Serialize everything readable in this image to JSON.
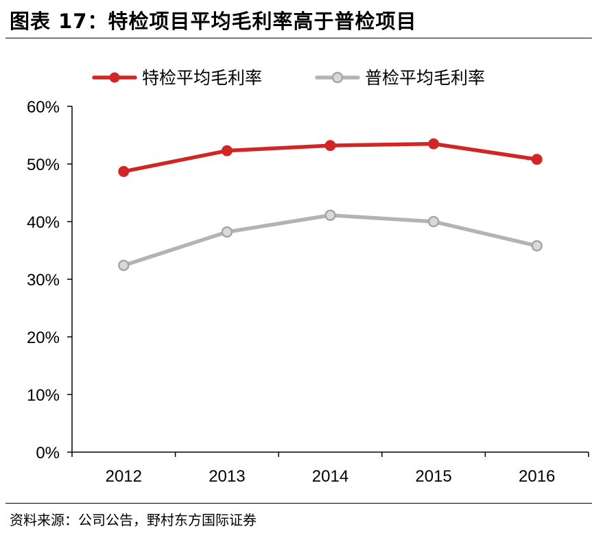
{
  "figure": {
    "title": "图表 17：特检项目平均毛利率高于普检项目",
    "source": "资料来源：公司公告，野村东方国际证券"
  },
  "chart_data": {
    "type": "line",
    "title": "",
    "xlabel": "",
    "ylabel": "",
    "categories": [
      "2012",
      "2013",
      "2014",
      "2015",
      "2016"
    ],
    "y_tick_labels": [
      "0%",
      "10%",
      "20%",
      "30%",
      "40%",
      "50%",
      "60%"
    ],
    "ylim": [
      0,
      60
    ],
    "y_unit": "%",
    "grid": false,
    "legend_position": "top",
    "series": [
      {
        "name": "特检平均毛利率",
        "values": [
          48.7,
          52.3,
          53.2,
          53.5,
          50.8
        ],
        "color": "#d02626",
        "marker": "filled-circle"
      },
      {
        "name": "普检平均毛利率",
        "values": [
          32.4,
          38.2,
          41.1,
          40.0,
          35.8
        ],
        "color": "#b3b3b3",
        "marker": "hollow-circle"
      }
    ]
  }
}
